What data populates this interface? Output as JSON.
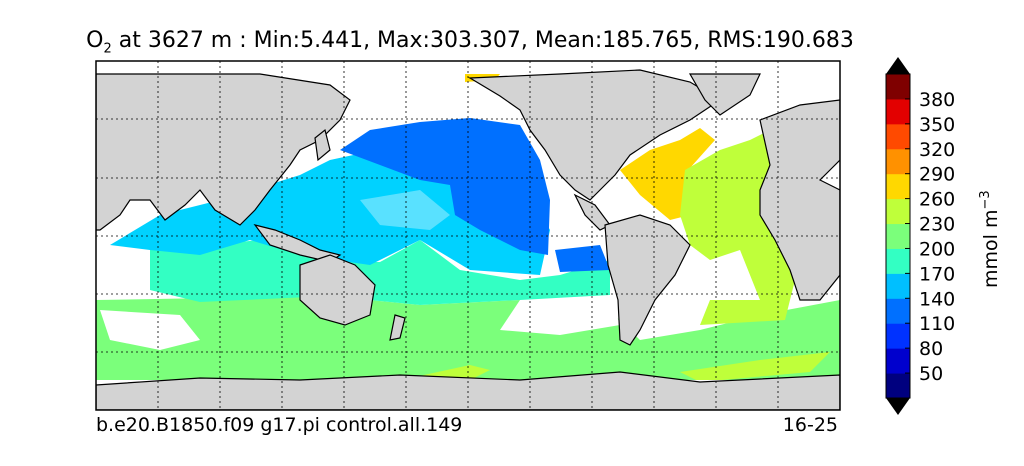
{
  "title": {
    "variable": "O",
    "subscript": "2",
    "rest": " at 3627 m : Min:5.441, Max:303.307, Mean:185.765, RMS:190.683"
  },
  "footer": {
    "case_name": "b.e20.B1850.f09 g17.pi control.all.149",
    "years": "16-25"
  },
  "colorbar": {
    "unit": "mmol m",
    "unit_exponent": "−3",
    "ticks": [
      "50",
      "80",
      "110",
      "140",
      "170",
      "200",
      "230",
      "260",
      "290",
      "320",
      "350",
      "380"
    ],
    "colors": [
      "#00007f",
      "#0000cd",
      "#0032ff",
      "#0070ff",
      "#00bfff",
      "#33ffc3",
      "#7bff7b",
      "#bfff3a",
      "#ffd800",
      "#ff9100",
      "#ff4a00",
      "#e30000",
      "#7f0000"
    ]
  },
  "map": {
    "land_color": "#d3d3d3",
    "nodata_color": "#ffffff",
    "grid": true
  }
}
